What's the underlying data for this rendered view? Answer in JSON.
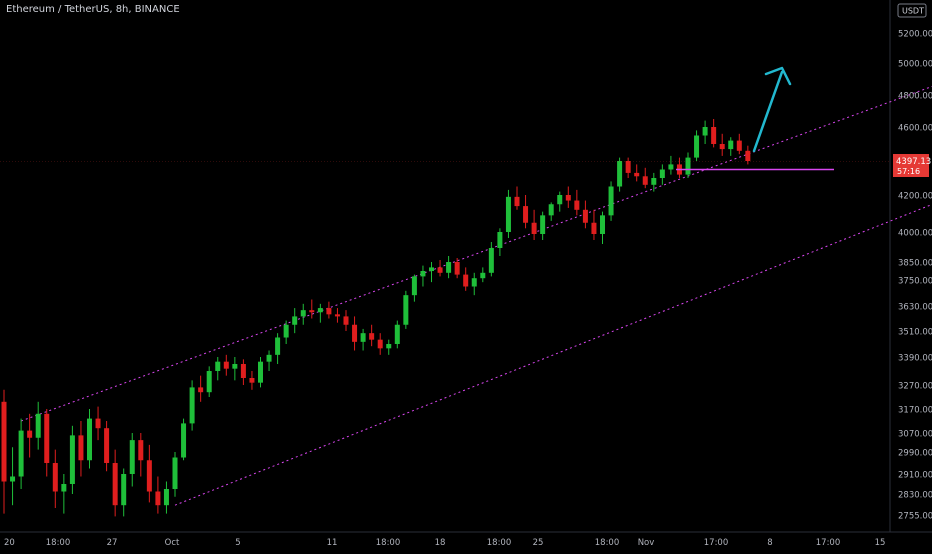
{
  "header": {
    "title": "Ethereum / TetherUS, 8h, BINANCE"
  },
  "chart_data": {
    "type": "candlestick",
    "currency_badge": "USDT",
    "price_labels": [
      "5200.00",
      "5000.00",
      "4800.00",
      "4600.00",
      "4200.00",
      "4000.00",
      "3850.00",
      "3750.00",
      "3630.00",
      "3510.00",
      "3390.00",
      "3270.00",
      "3170.00",
      "3070.00",
      "2990.00",
      "2910.00",
      "2830.00",
      "2755.00"
    ],
    "last_price": {
      "value": 4397.13,
      "label": "4397.13",
      "countdown": "57:16"
    },
    "x_ticks": [
      "20",
      "18:00",
      "27",
      "Oct",
      "5",
      "11",
      "18:00",
      "18",
      "18:00",
      "25",
      "18:00",
      "Nov",
      "17:00",
      "8",
      "17:00",
      "15"
    ],
    "colors": {
      "up": "#26a69a",
      "bullish": "#1fbf3a",
      "bearish": "#e01e1e",
      "channel": "#d946ef",
      "support": "#d946ef",
      "arrow": "#22b8cf",
      "axis_text": "#b2b5be",
      "price_tag": "#e53935"
    },
    "channel": {
      "upper": [
        [
          2,
          3120
        ],
        [
          127,
          5230
        ]
      ],
      "lower": [
        [
          20,
          2790
        ],
        [
          137,
          4720
        ]
      ]
    },
    "support_level": 4350,
    "projection_arrow": {
      "from": [
        116,
        4420
      ],
      "to": [
        122,
        4930
      ]
    },
    "candles": [
      [
        3200,
        3250,
        2760,
        2880
      ],
      [
        2880,
        3010,
        2790,
        2900
      ],
      [
        2900,
        3130,
        2850,
        3080
      ],
      [
        3080,
        3150,
        2970,
        3050
      ],
      [
        3050,
        3200,
        3000,
        3150
      ],
      [
        3150,
        3170,
        2900,
        2950
      ],
      [
        2950,
        3000,
        2780,
        2840
      ],
      [
        2840,
        2910,
        2760,
        2870
      ],
      [
        2870,
        3100,
        2830,
        3060
      ],
      [
        3060,
        3120,
        2900,
        2960
      ],
      [
        2960,
        3170,
        2930,
        3130
      ],
      [
        3130,
        3180,
        3040,
        3090
      ],
      [
        3090,
        3120,
        2920,
        2950
      ],
      [
        2950,
        3000,
        2750,
        2790
      ],
      [
        2790,
        2930,
        2750,
        2910
      ],
      [
        2910,
        3070,
        2860,
        3040
      ],
      [
        3040,
        3070,
        2900,
        2960
      ],
      [
        2960,
        3020,
        2800,
        2840
      ],
      [
        2840,
        2900,
        2760,
        2790
      ],
      [
        2790,
        2880,
        2760,
        2850
      ],
      [
        2850,
        2990,
        2820,
        2970
      ],
      [
        2970,
        3130,
        2960,
        3110
      ],
      [
        3110,
        3290,
        3080,
        3260
      ],
      [
        3260,
        3310,
        3200,
        3240
      ],
      [
        3240,
        3350,
        3220,
        3330
      ],
      [
        3330,
        3390,
        3290,
        3370
      ],
      [
        3370,
        3400,
        3310,
        3340
      ],
      [
        3340,
        3390,
        3290,
        3360
      ],
      [
        3360,
        3380,
        3270,
        3300
      ],
      [
        3300,
        3330,
        3250,
        3280
      ],
      [
        3280,
        3390,
        3260,
        3370
      ],
      [
        3370,
        3420,
        3330,
        3400
      ],
      [
        3400,
        3500,
        3360,
        3480
      ],
      [
        3480,
        3560,
        3450,
        3540
      ],
      [
        3540,
        3620,
        3500,
        3580
      ],
      [
        3580,
        3640,
        3540,
        3610
      ],
      [
        3610,
        3660,
        3570,
        3600
      ],
      [
        3600,
        3640,
        3550,
        3620
      ],
      [
        3620,
        3650,
        3570,
        3590
      ],
      [
        3590,
        3620,
        3550,
        3580
      ],
      [
        3580,
        3610,
        3510,
        3540
      ],
      [
        3540,
        3580,
        3420,
        3460
      ],
      [
        3460,
        3520,
        3420,
        3500
      ],
      [
        3500,
        3540,
        3440,
        3470
      ],
      [
        3470,
        3500,
        3400,
        3430
      ],
      [
        3430,
        3470,
        3400,
        3450
      ],
      [
        3450,
        3560,
        3430,
        3540
      ],
      [
        3540,
        3700,
        3520,
        3680
      ],
      [
        3680,
        3780,
        3650,
        3770
      ],
      [
        3770,
        3830,
        3720,
        3800
      ],
      [
        3800,
        3850,
        3740,
        3820
      ],
      [
        3820,
        3860,
        3770,
        3790
      ],
      [
        3790,
        3880,
        3760,
        3850
      ],
      [
        3850,
        3870,
        3760,
        3780
      ],
      [
        3780,
        3820,
        3700,
        3720
      ],
      [
        3720,
        3790,
        3680,
        3760
      ],
      [
        3760,
        3820,
        3740,
        3790
      ],
      [
        3790,
        3950,
        3770,
        3920
      ],
      [
        3920,
        4020,
        3880,
        4000
      ],
      [
        4000,
        4230,
        3970,
        4190
      ],
      [
        4190,
        4250,
        4120,
        4140
      ],
      [
        4140,
        4200,
        4020,
        4050
      ],
      [
        4050,
        4120,
        3960,
        3990
      ],
      [
        3990,
        4110,
        3960,
        4090
      ],
      [
        4090,
        4160,
        4060,
        4150
      ],
      [
        4150,
        4220,
        4110,
        4200
      ],
      [
        4200,
        4250,
        4130,
        4170
      ],
      [
        4170,
        4230,
        4090,
        4120
      ],
      [
        4120,
        4170,
        4020,
        4050
      ],
      [
        4050,
        4120,
        3960,
        3990
      ],
      [
        3990,
        4110,
        3940,
        4090
      ],
      [
        4090,
        4280,
        4060,
        4250
      ],
      [
        4250,
        4420,
        4220,
        4400
      ],
      [
        4400,
        4420,
        4300,
        4330
      ],
      [
        4330,
        4380,
        4280,
        4310
      ],
      [
        4310,
        4360,
        4240,
        4260
      ],
      [
        4260,
        4330,
        4220,
        4300
      ],
      [
        4300,
        4380,
        4260,
        4350
      ],
      [
        4350,
        4430,
        4320,
        4380
      ],
      [
        4380,
        4420,
        4300,
        4320
      ],
      [
        4320,
        4450,
        4300,
        4420
      ],
      [
        4420,
        4580,
        4400,
        4550
      ],
      [
        4550,
        4640,
        4500,
        4600
      ],
      [
        4600,
        4650,
        4480,
        4500
      ],
      [
        4500,
        4560,
        4430,
        4470
      ],
      [
        4470,
        4540,
        4430,
        4520
      ],
      [
        4520,
        4560,
        4440,
        4460
      ],
      [
        4460,
        4490,
        4380,
        4400
      ]
    ]
  }
}
